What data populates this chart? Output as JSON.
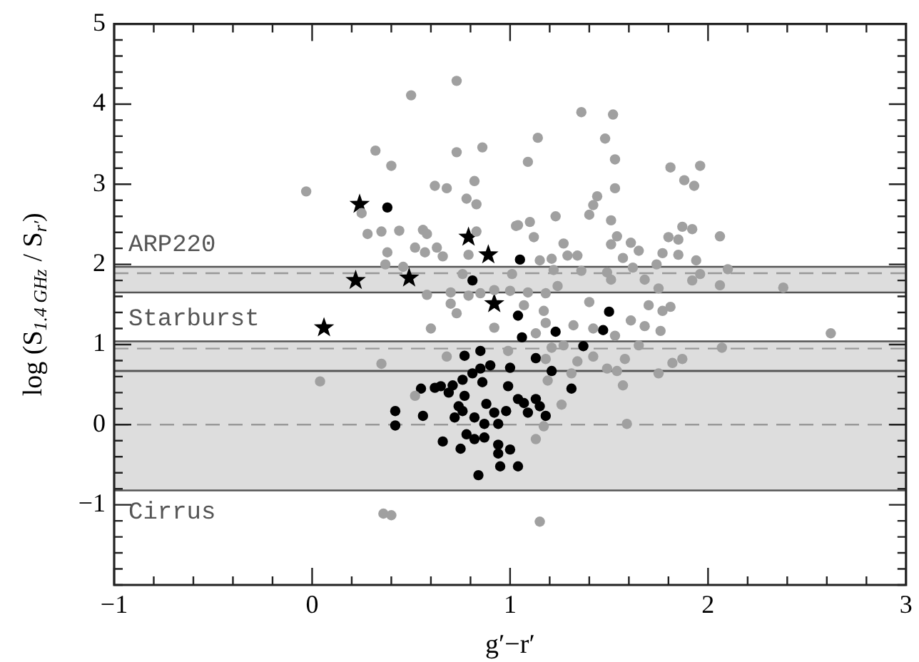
{
  "chart_data": {
    "type": "scatter",
    "xlabel": "g′−r′",
    "ylabel": "log (S$_{1.4 GHz}$ / S$_{r′}$)",
    "xlim": [
      -1,
      3
    ],
    "ylim": [
      -2,
      5
    ],
    "xticks": [
      {
        "value": -1,
        "label": "−1"
      },
      {
        "value": -0.8,
        "label": null
      },
      {
        "value": -0.6,
        "label": null
      },
      {
        "value": -0.4,
        "label": null
      },
      {
        "value": -0.2,
        "label": null
      },
      0,
      {
        "value": 0.2,
        "label": null
      },
      {
        "value": 0.4,
        "label": null
      },
      {
        "value": 0.6,
        "label": null
      },
      {
        "value": 0.8,
        "label": null
      },
      1,
      {
        "value": 1.2,
        "label": null
      },
      {
        "value": 1.4,
        "label": null
      },
      {
        "value": 1.6,
        "label": null
      },
      {
        "value": 1.8,
        "label": null
      },
      2,
      {
        "value": 2.2,
        "label": null
      },
      {
        "value": 2.4,
        "label": null
      },
      {
        "value": 2.6,
        "label": null
      },
      {
        "value": 2.8,
        "label": null
      },
      3
    ],
    "yticks": [
      {
        "value": -2,
        "label": null
      },
      {
        "value": -1.8,
        "label": null
      },
      {
        "value": -1.6,
        "label": null
      },
      {
        "value": -1.4,
        "label": null
      },
      {
        "value": -1.2,
        "label": null
      },
      {
        "value": -1,
        "label": "−1"
      },
      {
        "value": -0.8,
        "label": null
      },
      {
        "value": -0.6,
        "label": null
      },
      {
        "value": -0.4,
        "label": null
      },
      {
        "value": -0.2,
        "label": null
      },
      0,
      {
        "value": 0.2,
        "label": null
      },
      {
        "value": 0.4,
        "label": null
      },
      {
        "value": 0.6,
        "label": null
      },
      {
        "value": 0.8,
        "label": null
      },
      1,
      {
        "value": 1.2,
        "label": null
      },
      {
        "value": 1.4,
        "label": null
      },
      {
        "value": 1.6,
        "label": null
      },
      {
        "value": 1.8,
        "label": null
      },
      2,
      {
        "value": 2.2,
        "label": null
      },
      {
        "value": 2.4,
        "label": null
      },
      {
        "value": 2.6,
        "label": null
      },
      {
        "value": 2.8,
        "label": null
      },
      3,
      {
        "value": 3.2,
        "label": null
      },
      {
        "value": 3.4,
        "label": null
      },
      {
        "value": 3.6,
        "label": null
      },
      {
        "value": 3.8,
        "label": null
      },
      4,
      {
        "value": 4.2,
        "label": null
      },
      {
        "value": 4.4,
        "label": null
      },
      {
        "value": 4.6,
        "label": null
      },
      {
        "value": 4.8,
        "label": null
      },
      5
    ],
    "grid": false,
    "legend": false,
    "bands": [
      {
        "axis": "y",
        "from": 1.65,
        "to": 1.97,
        "label": "ARP220",
        "color": "#555555"
      },
      {
        "axis": "y",
        "from": 0.67,
        "to": 1.04,
        "label": "Starburst",
        "color": "#555555"
      },
      {
        "axis": "y",
        "from": -0.82,
        "to": 0.67,
        "label": "Cirrus",
        "color": "#555555"
      }
    ],
    "ref_lines": [
      {
        "axis": "y",
        "value": 1.89,
        "color": "#999999",
        "line_style": "dashed"
      },
      {
        "axis": "y",
        "value": 0.95,
        "color": "#999999",
        "line_style": "dashed"
      },
      {
        "axis": "y",
        "value": 0,
        "color": "#999999",
        "line_style": "dashed"
      }
    ],
    "series": [
      {
        "type": "scatter",
        "marker": "circle",
        "color": "#a0a0a0",
        "x": [
          0.73,
          0.5,
          0.32,
          0.4,
          0.73,
          0.86,
          -0.03,
          0.62,
          0.68,
          0.82,
          0.78,
          0.83,
          0.25,
          0.28,
          0.35,
          0.44,
          0.56,
          0.58,
          0.38,
          0.52,
          0.57,
          0.63,
          0.66,
          0.79,
          0.83,
          1.03,
          0.37,
          0.46,
          0.76,
          1.01,
          0.58,
          0.7,
          0.79,
          0.85,
          0.92,
          1.0,
          1.36,
          1.52,
          1.14,
          1.48,
          1.09,
          1.53,
          1.81,
          1.96,
          1.88,
          1.93,
          1.53,
          1.44,
          1.42,
          1.4,
          1.23,
          1.1,
          1.04,
          1.51,
          1.12,
          1.27,
          1.54,
          1.51,
          1.61,
          1.65,
          1.8,
          1.87,
          1.92,
          1.85,
          2.06,
          1.29,
          1.34,
          1.15,
          1.21,
          1.57,
          1.77,
          1.85,
          1.94,
          1.22,
          1.36,
          1.49,
          1.62,
          1.74,
          1.96,
          2.1,
          1.09,
          1.24,
          1.51,
          1.68,
          1.92,
          2.06,
          2.38,
          1.18,
          1.75,
          1.07,
          1.17,
          1.18,
          1.32,
          1.4,
          1.42,
          1.53,
          1.61,
          1.68,
          1.7,
          1.77,
          1.81,
          1.76,
          1.65,
          1.58,
          1.54,
          1.57,
          1.75,
          1.82,
          1.87,
          2.07,
          2.62,
          1.13,
          1.21,
          1.27,
          1.18,
          1.34,
          1.42,
          1.31,
          1.19,
          1.49,
          1.26,
          1.17,
          1.59,
          1.13,
          1.15,
          0.7,
          0.73,
          0.6,
          0.92,
          0.68,
          0.35,
          0.04,
          0.52,
          0.99,
          0.36,
          0.4
        ],
        "values": [
          4.29,
          4.11,
          3.42,
          3.23,
          3.4,
          3.46,
          2.91,
          2.98,
          2.95,
          3.04,
          2.82,
          2.75,
          2.64,
          2.38,
          2.41,
          2.42,
          2.43,
          2.38,
          2.15,
          2.21,
          2.15,
          2.21,
          2.1,
          2.12,
          2.41,
          2.48,
          2.0,
          1.97,
          1.88,
          1.88,
          1.62,
          1.65,
          1.61,
          1.64,
          1.68,
          1.67,
          3.9,
          3.87,
          3.58,
          3.57,
          3.28,
          3.31,
          3.21,
          3.23,
          3.05,
          2.98,
          2.95,
          2.85,
          2.74,
          2.62,
          2.6,
          2.53,
          2.49,
          2.55,
          2.34,
          2.26,
          2.35,
          2.25,
          2.27,
          2.17,
          2.34,
          2.47,
          2.44,
          2.31,
          2.35,
          2.11,
          2.11,
          2.05,
          2.07,
          2.08,
          2.14,
          2.12,
          2.05,
          1.93,
          1.92,
          1.9,
          1.96,
          2.0,
          1.88,
          1.94,
          1.65,
          1.73,
          1.81,
          1.81,
          1.8,
          1.74,
          1.71,
          1.64,
          1.7,
          1.49,
          1.42,
          1.27,
          1.24,
          1.53,
          1.2,
          1.11,
          1.3,
          1.23,
          1.49,
          1.42,
          1.47,
          1.17,
          0.99,
          0.82,
          0.67,
          0.49,
          0.64,
          0.77,
          0.82,
          0.96,
          1.14,
          1.14,
          0.96,
          0.99,
          0.82,
          0.79,
          0.85,
          0.64,
          0.55,
          0.7,
          0.25,
          -0.02,
          0.01,
          -0.18,
          -1.21,
          1.51,
          1.39,
          1.2,
          1.21,
          0.85,
          0.76,
          0.54,
          0.36,
          0.92,
          -1.11,
          -1.13
        ]
      },
      {
        "type": "scatter",
        "marker": "circle",
        "color": "#000000",
        "x": [
          0.38,
          1.05,
          0.81,
          1.04,
          1.5,
          1.06,
          1.23,
          1.47,
          1.37,
          1.13,
          1.21,
          1.31,
          1.04,
          1.13,
          1.07,
          1.15,
          1.09,
          1.18,
          1.04,
          0.85,
          0.77,
          0.9,
          0.85,
          0.81,
          1.0,
          0.76,
          0.71,
          0.65,
          0.62,
          0.55,
          0.69,
          0.86,
          0.99,
          0.77,
          0.88,
          0.74,
          0.76,
          0.72,
          0.82,
          0.92,
          0.98,
          0.42,
          0.42,
          0.56,
          0.87,
          0.94,
          0.78,
          0.82,
          0.87,
          0.66,
          0.75,
          0.94,
          1.0,
          0.94,
          0.95,
          0.84
        ],
        "values": [
          2.71,
          2.06,
          1.8,
          1.36,
          1.41,
          1.09,
          1.16,
          1.18,
          0.98,
          0.83,
          0.67,
          0.45,
          0.32,
          0.32,
          0.27,
          0.23,
          0.15,
          0.11,
          -0.52,
          0.92,
          0.86,
          0.74,
          0.7,
          0.64,
          0.71,
          0.56,
          0.49,
          0.48,
          0.46,
          0.45,
          0.4,
          0.53,
          0.48,
          0.36,
          0.26,
          0.23,
          0.17,
          0.09,
          0.09,
          0.15,
          0.17,
          0.17,
          -0.01,
          0.11,
          0.01,
          0.01,
          -0.12,
          -0.18,
          -0.16,
          -0.21,
          -0.3,
          -0.25,
          -0.31,
          -0.36,
          -0.52,
          -0.63
        ]
      },
      {
        "type": "scatter",
        "marker": "star",
        "color": "#000000",
        "x": [
          0.24,
          0.79,
          0.89,
          0.22,
          0.49,
          0.06,
          0.92
        ],
        "values": [
          2.75,
          2.34,
          2.12,
          1.8,
          1.83,
          1.21,
          1.51
        ]
      }
    ]
  }
}
